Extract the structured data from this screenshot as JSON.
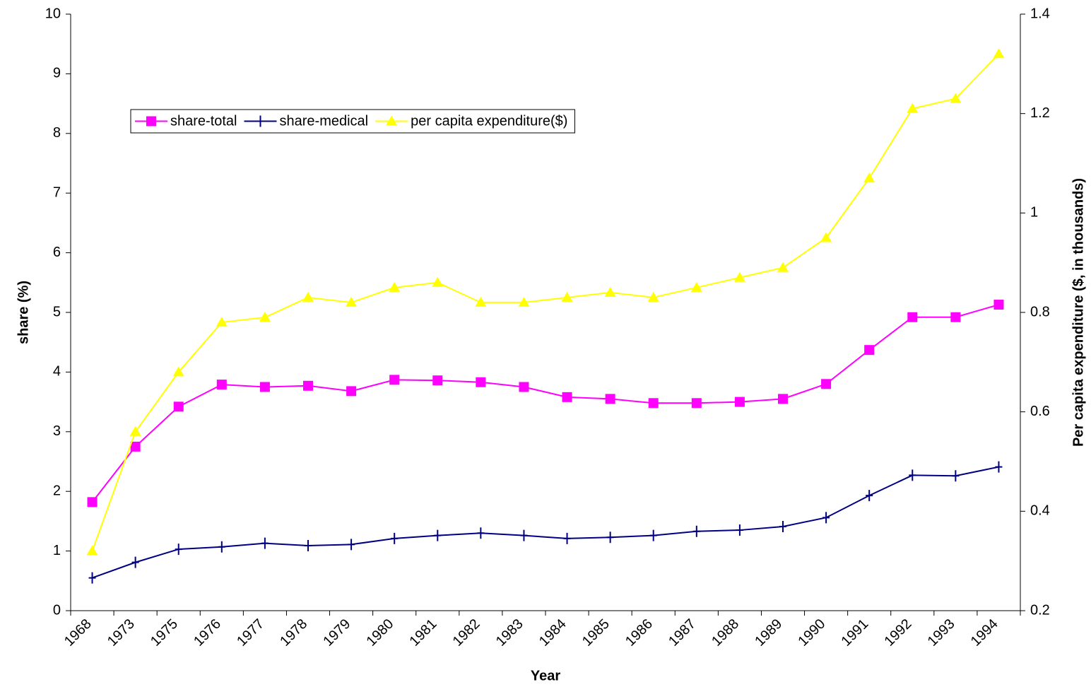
{
  "chart_data": {
    "type": "line",
    "x_label": "Year",
    "y_label": "share (%)",
    "y2_label": "Per capita expenditure ($, in thousands)",
    "categories": [
      "1968",
      "1973",
      "1975",
      "1976",
      "1977",
      "1978",
      "1979",
      "1980",
      "1981",
      "1982",
      "1983",
      "1984",
      "1985",
      "1986",
      "1987",
      "1988",
      "1989",
      "1990",
      "1991",
      "1992",
      "1993",
      "1994"
    ],
    "series": [
      {
        "name": "share-total",
        "color": "#ff00ff",
        "marker": "square",
        "values": [
          1.82,
          2.75,
          3.42,
          3.79,
          3.75,
          3.77,
          3.68,
          3.87,
          3.86,
          3.83,
          3.75,
          3.58,
          3.55,
          3.48,
          3.48,
          3.5,
          3.55,
          3.8,
          4.37,
          4.92,
          4.92,
          5.13
        ]
      },
      {
        "name": "share-medical",
        "color": "#000080",
        "marker": "plus",
        "values": [
          0.55,
          0.81,
          1.03,
          1.07,
          1.13,
          1.09,
          1.11,
          1.21,
          1.26,
          1.3,
          1.26,
          1.21,
          1.23,
          1.26,
          1.33,
          1.35,
          1.41,
          1.56,
          1.93,
          2.27,
          2.26,
          2.41
        ]
      },
      {
        "name": "per capita expenditure($)",
        "color": "#ffff00",
        "marker": "triangle",
        "axis": "y2",
        "values": [
          0.32,
          0.56,
          0.68,
          0.78,
          0.79,
          0.83,
          0.82,
          0.85,
          0.86,
          0.82,
          0.82,
          0.83,
          0.84,
          0.83,
          0.85,
          0.87,
          0.89,
          0.95,
          1.07,
          1.21,
          1.23,
          1.32
        ]
      }
    ],
    "ylim": [
      0,
      10
    ],
    "yticks": [
      0,
      1,
      2,
      3,
      4,
      5,
      6,
      7,
      8,
      9,
      10
    ],
    "y2lim": [
      0.2,
      1.4
    ],
    "y2ticks": [
      0.2,
      0.4,
      0.6,
      0.8,
      1,
      1.2,
      1.4
    ],
    "grid": false,
    "legend_position": "upper left"
  }
}
